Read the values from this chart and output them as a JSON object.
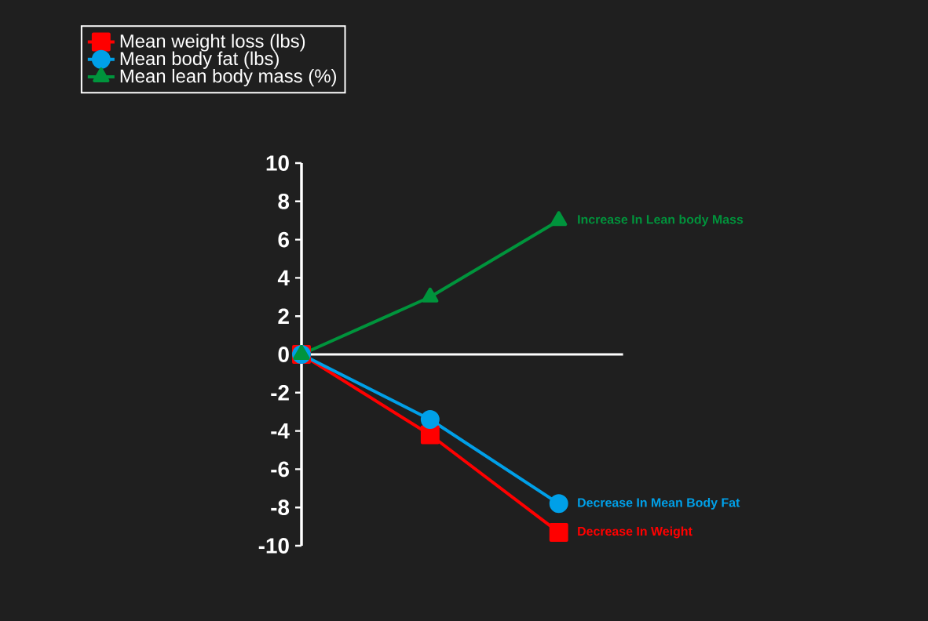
{
  "chart_data": {
    "type": "line",
    "categories": [
      null,
      null,
      null
    ],
    "series": [
      {
        "name": "Mean weight loss (lbs)",
        "color": "#ff0000",
        "marker": "square",
        "values": [
          0,
          -4.2,
          -9.3
        ]
      },
      {
        "name": "Mean body fat (lbs)",
        "color": "#00a0e8",
        "marker": "circle",
        "values": [
          0,
          -3.4,
          -7.8
        ]
      },
      {
        "name": "Mean lean body mass (%)",
        "color": "#00943c",
        "marker": "triangle",
        "values": [
          0,
          3,
          7
        ]
      }
    ],
    "ylim": [
      -10,
      10
    ],
    "yticks": [
      -10,
      -8,
      -6,
      -4,
      -2,
      0,
      2,
      4,
      6,
      8,
      10
    ],
    "tick_labels": "y",
    "grid": false,
    "legend": "top left",
    "ref_lines": [
      {
        "axis": "y",
        "value": 0,
        "color": "#ffffff"
      }
    ],
    "annotations": [
      "Increase In Lean body Mass",
      "Decrease In Mean Body Fat",
      "Decrease In Weight"
    ]
  }
}
